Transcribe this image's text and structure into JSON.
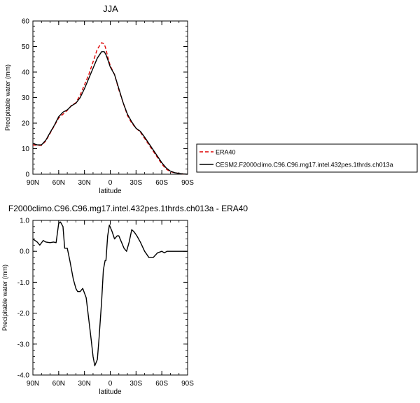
{
  "chart_data": [
    {
      "type": "line",
      "title": "JJA",
      "xlabel": "latitude",
      "ylabel": "Precipitable water (mm)",
      "xlim": [
        90,
        -90
      ],
      "ylim": [
        0,
        60
      ],
      "xticks": [
        90,
        60,
        30,
        0,
        -30,
        -60,
        -90
      ],
      "xtick_labels": [
        "90N",
        "60N",
        "30N",
        "0",
        "30S",
        "60S",
        "90S"
      ],
      "yticks": [
        0,
        10,
        20,
        30,
        40,
        50,
        60
      ],
      "ytick_labels": [
        "0",
        "10",
        "20",
        "30",
        "40",
        "50",
        "60"
      ],
      "legend_position": "outside-right",
      "series": [
        {
          "name": "ERA40",
          "color": "#dd0000",
          "dashed": true,
          "x": [
            90,
            85,
            80,
            75,
            70,
            65,
            60,
            55,
            50,
            45,
            40,
            35,
            30,
            25,
            20,
            15,
            10,
            7,
            5,
            3,
            0,
            -5,
            -10,
            -15,
            -20,
            -25,
            -30,
            -35,
            -40,
            -45,
            -50,
            -55,
            -60,
            -65,
            -70,
            -75,
            -80,
            -85,
            -90
          ],
          "values": [
            11.5,
            11.3,
            11.3,
            13,
            16,
            19,
            22,
            23.5,
            25,
            27,
            28,
            31,
            35,
            39,
            44,
            49,
            51.5,
            51,
            49,
            46,
            42.5,
            39,
            33,
            28,
            23,
            20,
            18,
            16.5,
            14,
            11.5,
            9,
            6.5,
            4,
            2,
            1,
            0.6,
            0.3,
            0.1,
            0
          ]
        },
        {
          "name": "CESM2.F2000climo.C96.C96.mg17.intel.432pes.1thrds.ch013a",
          "color": "#000000",
          "dashed": false,
          "x": [
            90,
            85,
            80,
            75,
            70,
            65,
            60,
            55,
            50,
            45,
            40,
            35,
            30,
            25,
            20,
            15,
            10,
            7,
            5,
            3,
            0,
            -5,
            -10,
            -15,
            -20,
            -25,
            -30,
            -35,
            -40,
            -45,
            -50,
            -55,
            -60,
            -65,
            -70,
            -75,
            -80,
            -85,
            -90
          ],
          "values": [
            12,
            11.5,
            11.5,
            13.3,
            16.3,
            19.2,
            22.5,
            24.3,
            25.2,
            26.8,
            27.8,
            30,
            33.5,
            37.5,
            41.5,
            45.5,
            48,
            48,
            46.8,
            45,
            42,
            39,
            33.5,
            28,
            23.5,
            20.5,
            18,
            16.8,
            14.5,
            12,
            9.5,
            7,
            4.5,
            2.5,
            1.2,
            0.6,
            0.3,
            0.1,
            0
          ]
        }
      ]
    },
    {
      "type": "line",
      "title": "F2000climo.C96.C96.mg17.intel.432pes.1thrds.ch013a - ERA40",
      "xlabel": "latitude",
      "ylabel": "Precipitable water (mm)",
      "xlim": [
        90,
        -90
      ],
      "ylim": [
        -4,
        1
      ],
      "xticks": [
        90,
        60,
        30,
        0,
        -30,
        -60,
        -90
      ],
      "xtick_labels": [
        "90N",
        "60N",
        "30N",
        "0",
        "30S",
        "60S",
        "90S"
      ],
      "yticks": [
        -4,
        -3,
        -2,
        -1,
        0,
        1
      ],
      "ytick_labels": [
        "-4.0",
        "-3.0",
        "-2.0",
        "-1.0",
        "0.0",
        "1.0"
      ],
      "series": [
        {
          "color": "#000000",
          "dashed": false,
          "x": [
            90,
            85,
            82,
            78,
            75,
            70,
            66,
            63,
            60,
            58,
            55,
            53,
            50,
            47,
            45,
            43,
            40,
            38,
            35,
            32,
            28,
            25,
            22,
            20,
            18,
            15,
            13,
            10,
            8,
            6,
            5,
            3,
            1,
            -2,
            -5,
            -8,
            -10,
            -13,
            -16,
            -19,
            -22,
            -25,
            -28,
            -31,
            -35,
            -40,
            -45,
            -50,
            -55,
            -60,
            -63,
            -66,
            -70,
            -75,
            -80,
            -85,
            -90
          ],
          "values": [
            0.4,
            0.3,
            0.2,
            0.35,
            0.3,
            0.28,
            0.3,
            0.28,
            0.9,
            0.95,
            0.8,
            0.1,
            0.1,
            -0.3,
            -0.6,
            -0.9,
            -1.2,
            -1.3,
            -1.3,
            -1.2,
            -1.5,
            -2.2,
            -2.9,
            -3.4,
            -3.7,
            -3.5,
            -2.8,
            -1.6,
            -0.6,
            -0.3,
            -0.3,
            0.5,
            0.85,
            0.65,
            0.4,
            0.5,
            0.5,
            0.3,
            0.1,
            0.0,
            0.3,
            0.7,
            0.62,
            0.5,
            0.3,
            0.0,
            -0.2,
            -0.2,
            -0.05,
            0.0,
            -0.05,
            0.0,
            0.0,
            0.0,
            0.0,
            0.0,
            0.0
          ]
        }
      ]
    }
  ]
}
